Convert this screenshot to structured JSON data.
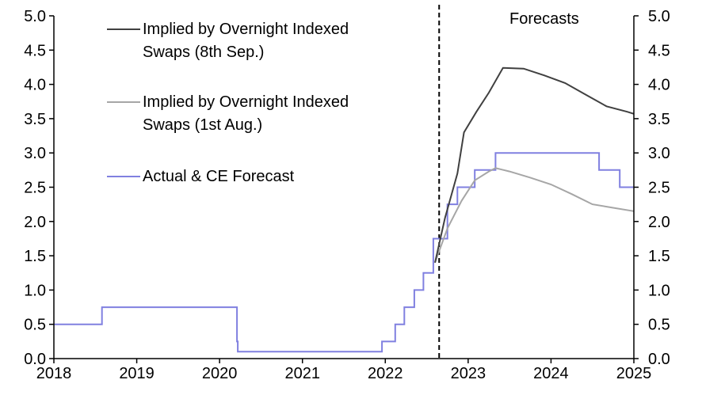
{
  "chart_data": {
    "type": "line",
    "title": "",
    "xlabel": "",
    "ylabel": "",
    "xlim": [
      2018,
      2025
    ],
    "ylim": [
      0,
      5
    ],
    "x_ticks": [
      "2018",
      "2019",
      "2020",
      "2021",
      "2022",
      "2023",
      "2024",
      "2025"
    ],
    "y_ticks_left": [
      "0.0",
      "0.5",
      "1.0",
      "1.5",
      "2.0",
      "2.5",
      "3.0",
      "3.5",
      "4.0",
      "4.5",
      "5.0"
    ],
    "y_ticks_right": [
      "0.0",
      "0.5",
      "1.0",
      "1.5",
      "2.0",
      "2.5",
      "3.0",
      "3.5",
      "4.0",
      "4.5",
      "5.0"
    ],
    "grid": false,
    "legend_position": "top-left",
    "forecast_divider_x": 2022.65,
    "annotation": "Forecasts",
    "series": [
      {
        "name": "Implied by Overnight Indexed Swaps (8th Sep.)",
        "legend_lines": [
          "Implied by Overnight Indexed",
          "Swaps (8th Sep.)"
        ],
        "color": "#404040",
        "x": [
          2022.6,
          2022.72,
          2022.87,
          2022.95,
          2023.1,
          2023.25,
          2023.42,
          2023.67,
          2023.92,
          2024.17,
          2024.42,
          2024.67,
          2024.92,
          2025.0
        ],
        "y": [
          1.4,
          2.05,
          2.7,
          3.3,
          3.6,
          3.88,
          4.24,
          4.23,
          4.13,
          4.02,
          3.85,
          3.68,
          3.6,
          3.57
        ]
      },
      {
        "name": "Implied by Overnight Indexed Swaps (1st Aug.)",
        "legend_lines": [
          "Implied by Overnight Indexed",
          "Swaps (1st Aug.)"
        ],
        "color": "#a6a6a6",
        "x": [
          2022.6,
          2022.75,
          2022.92,
          2023.08,
          2023.25,
          2023.33,
          2023.5,
          2023.75,
          2024.0,
          2024.25,
          2024.5,
          2024.75,
          2025.0
        ],
        "y": [
          1.4,
          1.9,
          2.3,
          2.6,
          2.73,
          2.78,
          2.73,
          2.64,
          2.54,
          2.4,
          2.25,
          2.2,
          2.15
        ]
      },
      {
        "name": "Actual & CE Forecast",
        "legend_lines": [
          "Actual & CE Forecast"
        ],
        "color": "#8080e0",
        "step": true,
        "x": [
          2018.0,
          2018.58,
          2020.21,
          2020.22,
          2021.96,
          2022.12,
          2022.23,
          2022.35,
          2022.46,
          2022.58,
          2022.67,
          2022.75,
          2022.87,
          2023.0,
          2023.08,
          2023.25,
          2023.33,
          2023.5,
          2023.75,
          2024.0,
          2024.25,
          2024.5,
          2024.58,
          2024.75,
          2024.83,
          2025.0
        ],
        "y": [
          0.5,
          0.75,
          0.25,
          0.1,
          0.25,
          0.5,
          0.75,
          1.0,
          1.25,
          1.75,
          1.75,
          2.25,
          2.5,
          2.5,
          2.75,
          2.75,
          3.0,
          3.0,
          3.0,
          3.0,
          3.0,
          3.0,
          2.75,
          2.75,
          2.5,
          2.5
        ]
      }
    ]
  }
}
